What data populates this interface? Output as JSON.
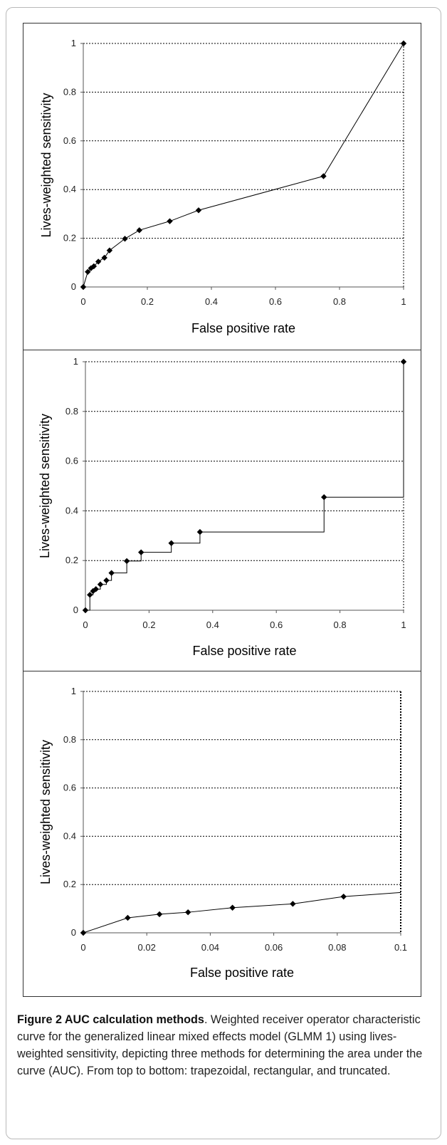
{
  "figure": {
    "label": "Figure 2 AUC calculation methods",
    "caption": ". Weighted receiver operator characteristic curve for the generalized linear mixed effects model (GLMM 1) using lives-weighted sensitivity, depicting three methods for determining the area under the curve (AUC). From top to bottom: trapezoidal, rectangular, and truncated."
  },
  "chart_data": [
    {
      "type": "line",
      "style": "trapezoidal",
      "xlabel": "False positive rate",
      "ylabel": "Lives-weighted sensitivity",
      "xlim": [
        0,
        1
      ],
      "ylim": [
        0,
        1
      ],
      "xticks": [
        "0",
        "0.2",
        "0.4",
        "0.6",
        "0.8",
        "1"
      ],
      "yticks": [
        "0",
        "0.2",
        "0.4",
        "0.6",
        "0.8",
        "1"
      ],
      "grid": "horizontal dotted",
      "x": [
        0,
        0.014,
        0.024,
        0.033,
        0.047,
        0.066,
        0.082,
        0.13,
        0.175,
        0.27,
        0.36,
        0.75,
        1
      ],
      "y": [
        0,
        0.062,
        0.077,
        0.085,
        0.104,
        0.12,
        0.15,
        0.198,
        0.233,
        0.27,
        0.315,
        0.455,
        1
      ]
    },
    {
      "type": "line",
      "style": "rectangular",
      "xlabel": "False positive rate",
      "ylabel": "Lives-weighted sensitivity",
      "xlim": [
        0,
        1
      ],
      "ylim": [
        0,
        1
      ],
      "xticks": [
        "0",
        "0.2",
        "0.4",
        "0.6",
        "0.8",
        "1"
      ],
      "yticks": [
        "0",
        "0.2",
        "0.4",
        "0.6",
        "0.8",
        "1"
      ],
      "grid": "horizontal dotted",
      "x": [
        0,
        0.014,
        0.024,
        0.033,
        0.047,
        0.066,
        0.082,
        0.13,
        0.175,
        0.27,
        0.36,
        0.75,
        1
      ],
      "y": [
        0,
        0.062,
        0.077,
        0.085,
        0.104,
        0.12,
        0.15,
        0.198,
        0.233,
        0.27,
        0.315,
        0.455,
        1
      ]
    },
    {
      "type": "line",
      "style": "truncated",
      "xlabel": "False positive rate",
      "ylabel": "Lives-weighted sensitivity",
      "xlim": [
        0,
        0.1
      ],
      "ylim": [
        0,
        1
      ],
      "xticks": [
        "0",
        "0.02",
        "0.04",
        "0.06",
        "0.08",
        "0.1"
      ],
      "yticks": [
        "0",
        "0.2",
        "0.4",
        "0.6",
        "0.8",
        "1"
      ],
      "grid": "horizontal dotted",
      "x": [
        0,
        0.014,
        0.024,
        0.033,
        0.047,
        0.066,
        0.082,
        0.1
      ],
      "y": [
        0,
        0.062,
        0.077,
        0.085,
        0.104,
        0.12,
        0.15,
        0.167
      ],
      "markers": [
        true,
        true,
        true,
        true,
        true,
        true,
        true,
        false
      ]
    }
  ]
}
